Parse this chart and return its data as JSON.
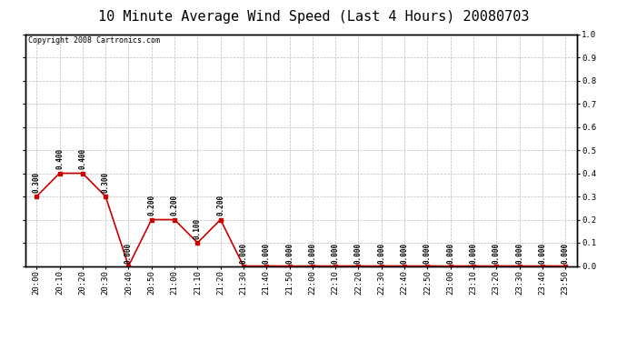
{
  "title": "10 Minute Average Wind Speed (Last 4 Hours) 20080703",
  "copyright_text": "Copyright 2008 Cartronics.com",
  "line_color": "#cc0000",
  "marker_color": "#cc0000",
  "bg_color": "#ffffff",
  "grid_color": "#bbbbbb",
  "x_labels": [
    "20:00",
    "20:10",
    "20:20",
    "20:30",
    "20:40",
    "20:50",
    "21:00",
    "21:10",
    "21:20",
    "21:30",
    "21:40",
    "21:50",
    "22:00",
    "22:10",
    "22:20",
    "22:30",
    "22:40",
    "22:50",
    "23:00",
    "23:10",
    "23:20",
    "23:30",
    "23:40",
    "23:50"
  ],
  "y_values": [
    0.3,
    0.4,
    0.4,
    0.3,
    0.0,
    0.2,
    0.2,
    0.1,
    0.2,
    0.0,
    0.0,
    0.0,
    0.0,
    0.0,
    0.0,
    0.0,
    0.0,
    0.0,
    0.0,
    0.0,
    0.0,
    0.0,
    0.0,
    0.0
  ],
  "ylim": [
    0.0,
    1.0
  ],
  "right_yticks": [
    0.0,
    0.1,
    0.2,
    0.3,
    0.4,
    0.5,
    0.6,
    0.7,
    0.8,
    0.9,
    1.0
  ],
  "right_yticklabels": [
    "0.0",
    "0.1",
    "0.2",
    "0.3",
    "0.4",
    "0.5",
    "0.6",
    "0.7",
    "0.8",
    "0.9",
    "1.0"
  ],
  "title_fontsize": 11,
  "copyright_fontsize": 6,
  "annotation_fontsize": 5.5,
  "tick_fontsize": 6.5
}
